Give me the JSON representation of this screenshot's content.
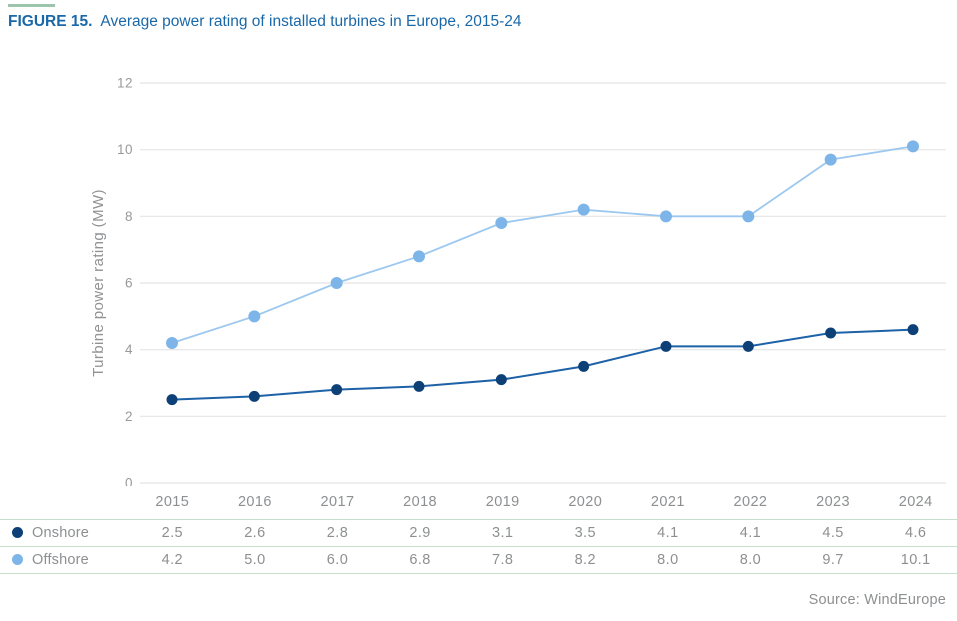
{
  "figure": {
    "label": "FIGURE 15.",
    "title": "Average power rating of installed turbines in Europe, 2015-24",
    "source": "Source: WindEurope"
  },
  "colors": {
    "title_blue": "#1a68a8",
    "rule_green": "#9cc5ab",
    "grid_gray": "#e4e4e4",
    "axis_text_gray": "#98999b",
    "table_text_gray": "#8d8f91",
    "table_separator_green": "#c5dfcb"
  },
  "chart_data": {
    "type": "line",
    "title": "Average power rating of installed turbines in Europe, 2015-24",
    "categories": [
      "2015",
      "2016",
      "2017",
      "2018",
      "2019",
      "2020",
      "2021",
      "2022",
      "2023",
      "2024"
    ],
    "series": [
      {
        "name": "Onshore",
        "marker_color": "#0d4077",
        "line_color": "#1d61a7",
        "values": [
          2.5,
          2.6,
          2.8,
          2.9,
          3.1,
          3.5,
          4.1,
          4.1,
          4.5,
          4.6
        ]
      },
      {
        "name": "Offshore",
        "marker_color": "#7eb5e8",
        "line_color": "#9cc8ef",
        "values": [
          4.2,
          5.0,
          6.0,
          6.8,
          7.8,
          8.2,
          8.0,
          8.0,
          9.7,
          10.1
        ]
      }
    ],
    "xlabel": "",
    "ylabel": "Turbine power rating (MW)",
    "ylim": [
      0,
      12
    ],
    "ytick_step": 2,
    "yticks": [
      0,
      2,
      4,
      6,
      8,
      10,
      12
    ],
    "grid": "horizontal",
    "legend_position": "table-rows-left"
  }
}
